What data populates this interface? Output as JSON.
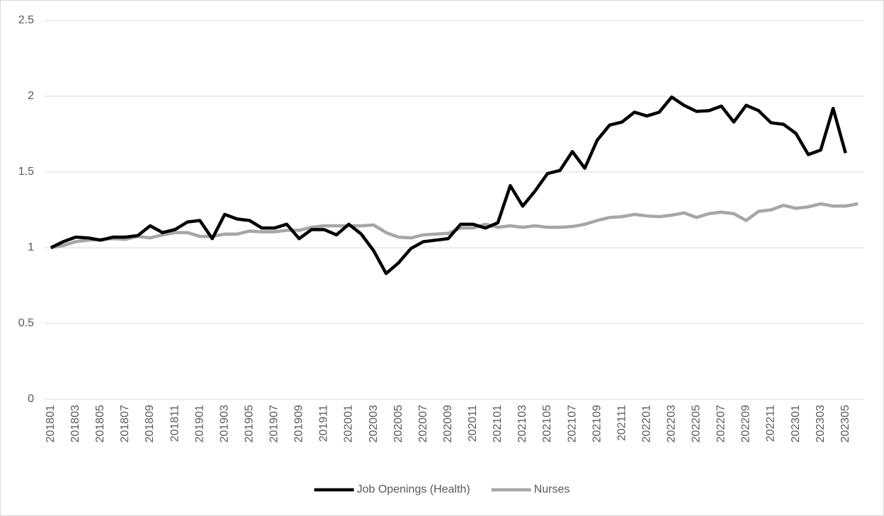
{
  "chart_data": {
    "type": "line",
    "categories": [
      "201801",
      null,
      "201803",
      null,
      "201805",
      null,
      "201807",
      null,
      "201809",
      null,
      "201811",
      null,
      "201901",
      null,
      "201903",
      null,
      "201905",
      null,
      "201907",
      null,
      "201909",
      null,
      "201911",
      null,
      "202001",
      null,
      "202003",
      null,
      "202005",
      null,
      "202007",
      null,
      "202009",
      null,
      "202011",
      null,
      "202101",
      null,
      "202103",
      null,
      "202105",
      null,
      "202107",
      null,
      "202109",
      null,
      "202111",
      null,
      "202201",
      null,
      "202203",
      null,
      "202205",
      null,
      "202207",
      null,
      "202209",
      null,
      "202211",
      null,
      "202301",
      null,
      "202303",
      null,
      "202305",
      null
    ],
    "series": [
      {
        "name": "Job Openings (Health)",
        "color": "#000000",
        "values": [
          1.0,
          1.04,
          1.07,
          1.065,
          1.05,
          1.07,
          1.07,
          1.08,
          1.145,
          1.1,
          1.12,
          1.17,
          1.18,
          1.06,
          1.22,
          1.19,
          1.18,
          1.13,
          1.13,
          1.155,
          1.06,
          1.12,
          1.12,
          1.085,
          1.155,
          1.09,
          0.98,
          0.83,
          0.9,
          0.995,
          1.04,
          1.05,
          1.06,
          1.155,
          1.155,
          1.13,
          1.165,
          1.41,
          1.275,
          1.375,
          1.49,
          1.51,
          1.635,
          1.525,
          1.71,
          1.81,
          1.83,
          1.895,
          1.87,
          1.895,
          1.995,
          1.94,
          1.9,
          1.905,
          1.935,
          1.83,
          1.94,
          1.905,
          1.825,
          1.815,
          1.755,
          1.615,
          1.645,
          1.92,
          1.625,
          null
        ]
      },
      {
        "name": "Nurses",
        "color": "#a6a6a6",
        "values": [
          1.0,
          1.015,
          1.04,
          1.05,
          1.055,
          1.06,
          1.055,
          1.075,
          1.065,
          1.085,
          1.1,
          1.1,
          1.075,
          1.075,
          1.09,
          1.09,
          1.11,
          1.105,
          1.105,
          1.115,
          1.115,
          1.135,
          1.145,
          1.145,
          1.145,
          1.145,
          1.15,
          1.1,
          1.07,
          1.065,
          1.085,
          1.09,
          1.095,
          1.13,
          1.13,
          1.155,
          1.135,
          1.145,
          1.135,
          1.145,
          1.135,
          1.135,
          1.14,
          1.155,
          1.18,
          1.2,
          1.205,
          1.22,
          1.21,
          1.205,
          1.215,
          1.23,
          1.2,
          1.225,
          1.235,
          1.225,
          1.18,
          1.24,
          1.25,
          1.28,
          1.26,
          1.27,
          1.29,
          1.275,
          1.275,
          1.29
        ]
      }
    ],
    "ylim": [
      0,
      2.5
    ],
    "yticks": [
      0,
      0.5,
      1,
      1.5,
      2,
      2.5
    ],
    "grid": true,
    "legend": "bottom"
  }
}
